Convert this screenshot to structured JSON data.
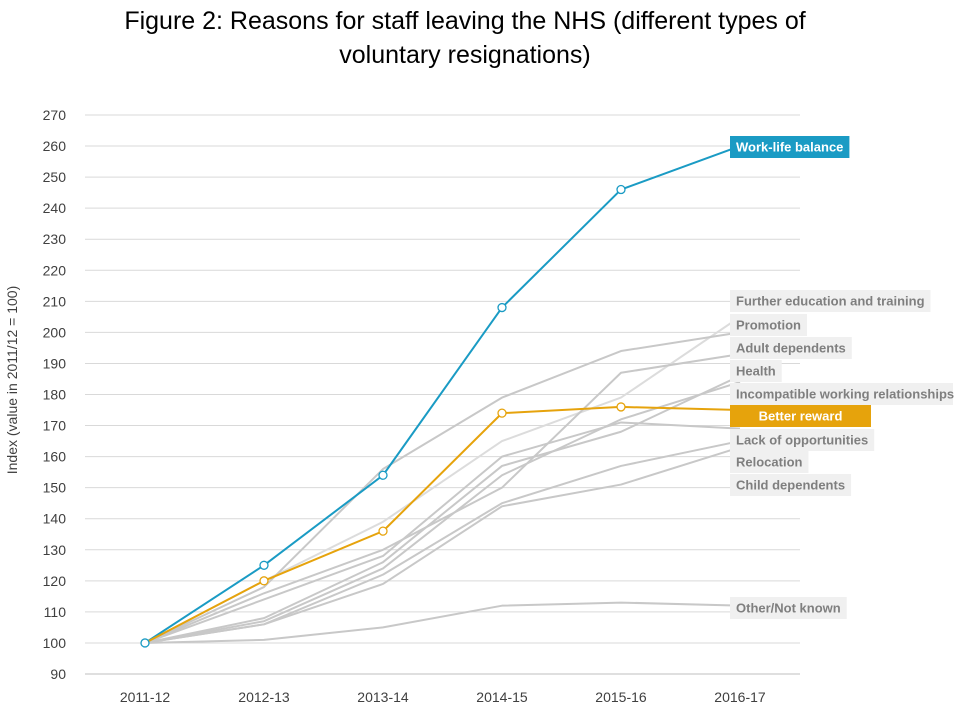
{
  "chart_data": {
    "type": "line",
    "title_line1": "Figure 2: Reasons for staff leaving the NHS (different types of",
    "title_line2": "voluntary resignations)",
    "xlabel": "",
    "ylabel": "Index (value in 2011/12 = 100)",
    "categories": [
      "2011-12",
      "2012-13",
      "2013-14",
      "2014-15",
      "2015-16",
      "2016-17"
    ],
    "ylim": [
      90,
      270
    ],
    "yticks": [
      "90",
      "100",
      "110",
      "120",
      "130",
      "140",
      "150",
      "160",
      "170",
      "180",
      "190",
      "200",
      "210",
      "220",
      "230",
      "240",
      "250",
      "260",
      "270"
    ],
    "colors": {
      "highlight_blue": "#1a9bc4",
      "highlight_gold": "#e6a30c",
      "grey_line": "#c8c8c8",
      "light_line": "#dcdcdc",
      "label_bg": "#f0f0f0",
      "label_text": "#7f7f7f"
    },
    "series": [
      {
        "name": "Work-life balance",
        "values": [
          100,
          125,
          154,
          208,
          246,
          260
        ],
        "style": "blue"
      },
      {
        "name": "Better reward",
        "values": [
          100,
          120,
          136,
          174,
          176,
          175
        ],
        "style": "gold"
      },
      {
        "name": "Further education and training",
        "values": [
          100,
          120,
          139,
          165,
          179,
          205
        ],
        "style": "light"
      },
      {
        "name": "Promotion",
        "values": [
          100,
          118,
          156,
          179,
          194,
          200
        ],
        "style": "grey"
      },
      {
        "name": "Adult dependents",
        "values": [
          100,
          116,
          130,
          150,
          187,
          193
        ],
        "style": "grey"
      },
      {
        "name": "Health",
        "values": [
          100,
          108,
          126,
          157,
          168,
          186
        ],
        "style": "grey"
      },
      {
        "name": "Incompatible working relationships",
        "values": [
          100,
          107,
          124,
          154,
          172,
          184
        ],
        "style": "grey"
      },
      {
        "name": "Lack of opportunities",
        "values": [
          100,
          114,
          128,
          160,
          171,
          169
        ],
        "style": "grey"
      },
      {
        "name": "Relocation",
        "values": [
          100,
          106,
          122,
          145,
          157,
          165
        ],
        "style": "grey"
      },
      {
        "name": "Child dependents",
        "values": [
          100,
          106,
          119,
          144,
          151,
          163
        ],
        "style": "grey"
      },
      {
        "name": "Other/Not known",
        "values": [
          100,
          101,
          105,
          112,
          113,
          112
        ],
        "style": "grey"
      }
    ]
  }
}
